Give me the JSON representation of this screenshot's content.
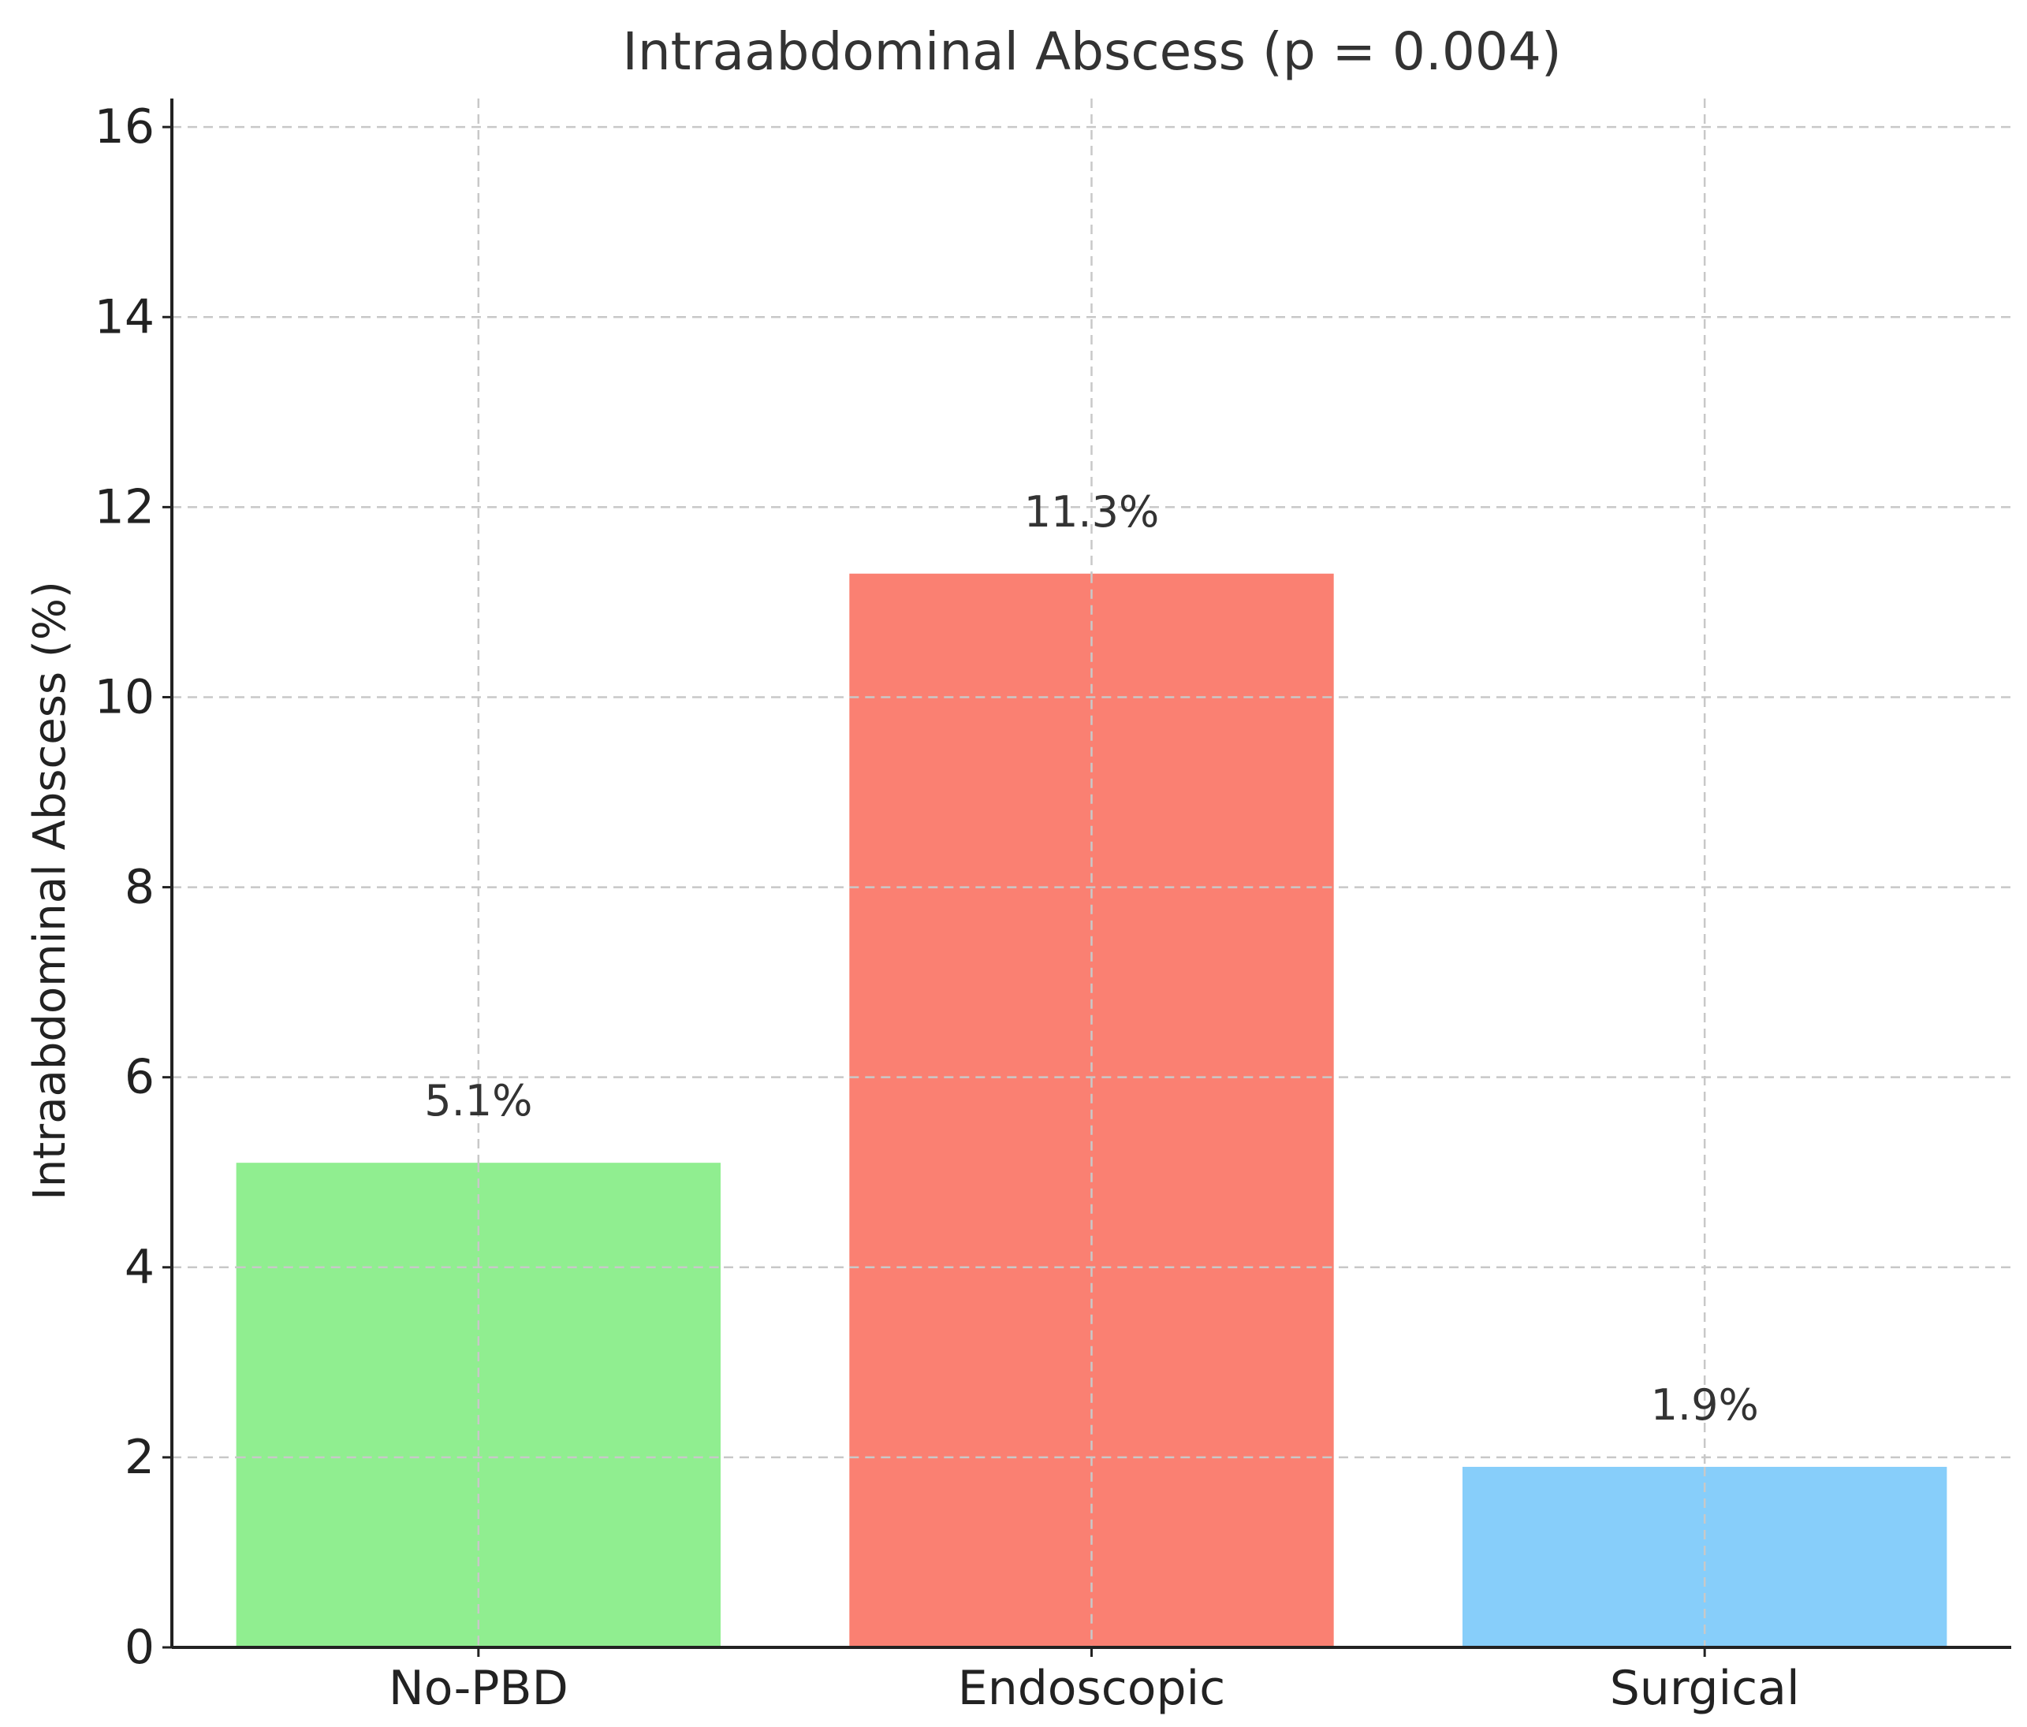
{
  "chart_data": {
    "type": "bar",
    "title": "Intraabdominal Abscess (p = 0.004)",
    "xlabel": "",
    "ylabel": "Intraabdominal Abscess (%)",
    "categories": [
      "No-PBD",
      "Endoscopic",
      "Surgical"
    ],
    "values": [
      5.1,
      11.3,
      1.9
    ],
    "data_labels": [
      "5.1%",
      "11.3%",
      "1.9%"
    ],
    "colors": [
      "#90EE90",
      "#FA8072",
      "#87CEFA"
    ],
    "ylim": [
      0,
      16.3
    ],
    "yticks": [
      0,
      2,
      4,
      6,
      8,
      10,
      12,
      14,
      16
    ],
    "ytick_labels": [
      "0",
      "2",
      "4",
      "6",
      "8",
      "10",
      "12",
      "14",
      "16"
    ],
    "grid": true,
    "legend": "none"
  }
}
